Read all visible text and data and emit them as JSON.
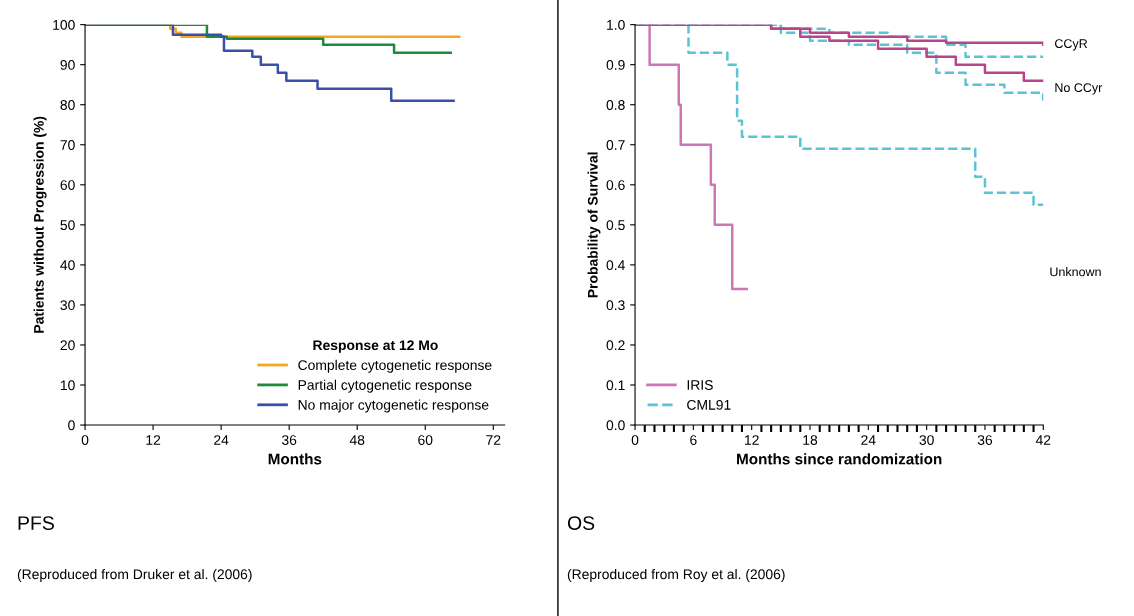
{
  "chart_data": [
    {
      "type": "step",
      "title": "PFS",
      "xlabel": "Months",
      "ylabel": "Patients without Progression (%)",
      "legend_title": "Response at 12 Mo",
      "legend": "bottom right",
      "xlim": [
        0,
        74
      ],
      "xticks": [
        0,
        12,
        24,
        36,
        48,
        60,
        72
      ],
      "ylim": [
        0,
        100
      ],
      "yticks": [
        0,
        10,
        20,
        30,
        40,
        50,
        60,
        70,
        80,
        90,
        100
      ],
      "annotations": [
        "(Reproduced from Druker et al. (2006)"
      ],
      "series": [
        {
          "name": "Complete cytogenetic response",
          "color": "#f5a623",
          "line_style": "solid",
          "x": [
            0,
            15,
            16,
            17,
            66
          ],
          "values": [
            100,
            99,
            98,
            97,
            97
          ]
        },
        {
          "name": "Partial cytogenetic response",
          "color": "#1e8a3c",
          "line_style": "solid",
          "x": [
            0,
            21.5,
            25,
            42,
            54.5,
            64.5
          ],
          "values": [
            100,
            97,
            96.5,
            95,
            93,
            93
          ]
        },
        {
          "name": "No major cytogenetic response",
          "color": "#3a4fa8",
          "line_style": "solid",
          "x": [
            0,
            15.5,
            24,
            24.5,
            29.5,
            31,
            34,
            35.5,
            41,
            54,
            65
          ],
          "values": [
            100,
            97.5,
            97,
            93.5,
            92,
            90,
            88,
            86,
            84,
            81,
            81
          ]
        }
      ]
    },
    {
      "type": "step",
      "title": "OS",
      "xlabel": "Months since randomization",
      "ylabel": "Probability of Survival",
      "legend": "bottom left",
      "xlim": [
        0,
        42
      ],
      "xticks": [
        0,
        6,
        12,
        18,
        24,
        30,
        36,
        42
      ],
      "ylim": [
        0,
        1.0
      ],
      "yticks": [
        {
          "value": 0,
          "label": "0.0"
        },
        0.1,
        0.2,
        0.3,
        0.4,
        0.5,
        0.6,
        0.7,
        0.8,
        0.9,
        {
          "value": 1.0,
          "label": "1.0"
        }
      ],
      "annotations": [
        {
          "text": "CCyR",
          "x": 42,
          "y": 0.95
        },
        {
          "text": "No CCyr",
          "x": 42,
          "y": 0.84
        },
        "Unknown",
        "(Reproduced from Roy et al. (2006)"
      ],
      "series": [
        {
          "name": "IRIS",
          "color": "#cc77b5",
          "line_style": "solid",
          "x": [
            0,
            1.5,
            4.5,
            4.7,
            7.8,
            8.2,
            10,
            11.5
          ],
          "values": [
            1,
            0.9,
            0.8,
            0.7,
            0.6,
            0.5,
            0.34,
            0.34
          ]
        },
        {
          "name": "CML91",
          "color": "#5bc3d3",
          "line_style": "dashed",
          "x": [
            0,
            5.5,
            9.5,
            10.5,
            11,
            17,
            35,
            36,
            37,
            41,
            42
          ],
          "values": [
            1,
            0.93,
            0.9,
            0.76,
            0.72,
            0.69,
            0.62,
            0.58,
            0.58,
            0.55,
            0.55
          ]
        },
        {
          "color": "#5bc3d3",
          "line_style": "dashed",
          "x": [
            0,
            15,
            20,
            26,
            32,
            34,
            42
          ],
          "values": [
            1,
            0.99,
            0.98,
            0.97,
            0.95,
            0.92,
            0.92
          ]
        },
        {
          "color": "#5bc3d3",
          "line_style": "dashed",
          "x": [
            0,
            15,
            18,
            22,
            28,
            31,
            34,
            38,
            42
          ],
          "values": [
            1,
            0.98,
            0.96,
            0.95,
            0.93,
            0.88,
            0.85,
            0.83,
            0.81
          ]
        },
        {
          "color": "#b8448a",
          "line_style": "solid",
          "x": [
            0,
            14,
            18,
            22,
            28,
            32,
            42
          ],
          "values": [
            1,
            0.99,
            0.98,
            0.97,
            0.96,
            0.955,
            0.95
          ]
        },
        {
          "color": "#b8448a",
          "line_style": "solid",
          "x": [
            0,
            14,
            17,
            20,
            25,
            30,
            33,
            36,
            40,
            42
          ],
          "values": [
            1,
            0.99,
            0.97,
            0.96,
            0.94,
            0.92,
            0.9,
            0.88,
            0.86,
            0.86
          ]
        }
      ]
    }
  ]
}
